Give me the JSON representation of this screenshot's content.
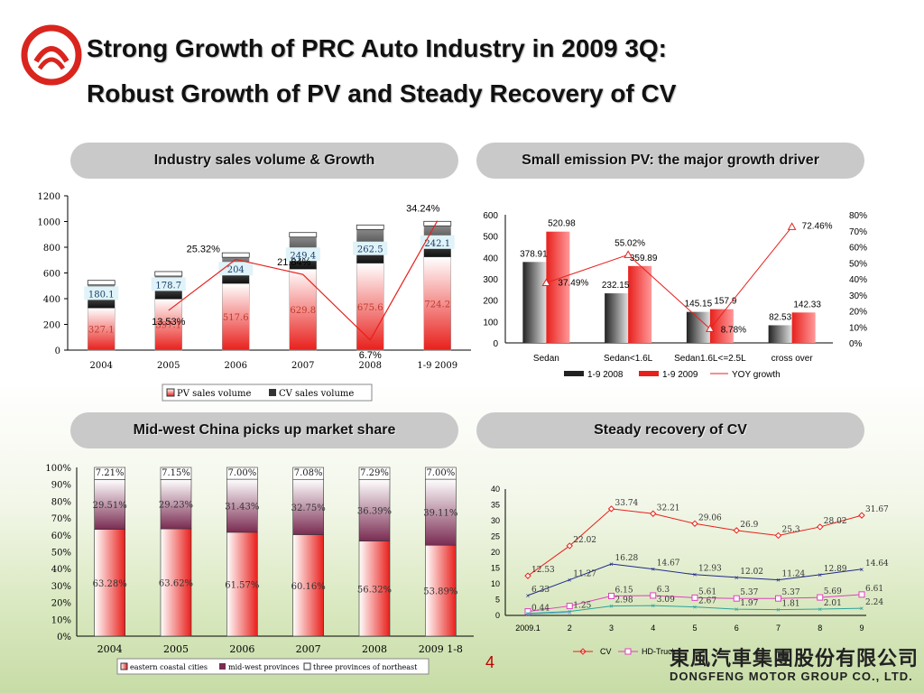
{
  "title_line1": "Strong Growth of PRC Auto Industry in 2009 3Q:",
  "title_line2": "Robust Growth of PV and Steady Recovery of CV",
  "page_number": "4",
  "company": {
    "cn": "東風汽車集團股份有限公司",
    "en": "DONGFENG  MOTOR  GROUP  CO., LTD."
  },
  "colors": {
    "logo": "#d9251d",
    "pill": "#c9c9c9",
    "red": "#e8201c",
    "black": "#222222"
  },
  "panels": {
    "p1": "Industry sales volume & Growth",
    "p2": "Small emission PV: the major growth driver",
    "p3": "Mid-west China picks up market share",
    "p4": "Steady recovery of CV"
  },
  "chart_data": [
    {
      "type": "bar",
      "stacked": true,
      "categories": [
        "2004",
        "2005",
        "2006",
        "2007",
        "2008",
        "1-9  2009"
      ],
      "series": [
        {
          "name": "PV sales volume",
          "values": [
            327.1,
            397.1,
            517.6,
            629.8,
            675.6,
            724.2
          ],
          "labels": [
            "327.1",
            "397.1",
            "517.6",
            "629.8",
            "675.6",
            "724.2"
          ]
        },
        {
          "name": "CV sales volume",
          "values": [
            180.1,
            178.7,
            204,
            249.4,
            262.5,
            242.1
          ],
          "labels": [
            "180.1",
            "178.7",
            "204",
            "249.4",
            "262.5",
            "242.1"
          ]
        }
      ],
      "growth_labels": [
        "",
        "13.53%",
        "25.32%",
        "21.84%",
        "6.7%",
        "34.24%"
      ],
      "growth_values": [
        null,
        13.53,
        25.32,
        21.84,
        6.7,
        34.24
      ],
      "ylim": [
        0,
        1200
      ],
      "yticks": [
        "0",
        "200",
        "400",
        "600",
        "800",
        "1000",
        "1200"
      ]
    },
    {
      "type": "bar",
      "categories": [
        "Sedan",
        "Sedan<1.6L",
        "Sedan1.6L<=2.5L",
        "cross over"
      ],
      "series": [
        {
          "name": "1-9 2008",
          "values": [
            378.91,
            232.15,
            145.15,
            82.53
          ],
          "labels": [
            "378.91",
            "232.15",
            "145.15",
            "82.53"
          ]
        },
        {
          "name": "1-9 2009",
          "values": [
            520.98,
            359.89,
            157.9,
            142.33
          ],
          "labels": [
            "520.98",
            "359.89",
            "157.9",
            "142.33"
          ]
        },
        {
          "name": "YOY growth",
          "axis": "right",
          "values": [
            37.49,
            55.02,
            8.78,
            72.46
          ],
          "labels": [
            "37.49%",
            "55.02%",
            "8.78%",
            "72.46%"
          ]
        }
      ],
      "ylim": [
        0,
        600
      ],
      "yticks": [
        "0",
        "100",
        "200",
        "300",
        "400",
        "500",
        "600"
      ],
      "y2lim": [
        0,
        80
      ],
      "y2ticks": [
        "0%",
        "10%",
        "20%",
        "30%",
        "40%",
        "50%",
        "60%",
        "70%",
        "80%"
      ]
    },
    {
      "type": "bar",
      "stacked": true,
      "percent": true,
      "categories": [
        "2004",
        "2005",
        "2006",
        "2007",
        "2008",
        "2009  1-8"
      ],
      "series": [
        {
          "name": "eastern coastal cities",
          "values": [
            63.28,
            63.62,
            61.57,
            60.16,
            56.32,
            53.89
          ],
          "labels": [
            "63.28%",
            "63.62%",
            "61.57%",
            "60.16%",
            "56.32%",
            "53.89%"
          ]
        },
        {
          "name": "mid-west provinces",
          "values": [
            29.51,
            29.23,
            31.43,
            32.75,
            36.39,
            39.11
          ],
          "labels": [
            "29.51%",
            "29.23%",
            "31.43%",
            "32.75%",
            "36.39%",
            "39.11%"
          ]
        },
        {
          "name": "three provinces of northeast",
          "values": [
            7.21,
            7.15,
            7.0,
            7.08,
            7.29,
            7.0
          ],
          "labels": [
            "7.21%",
            "7.15%",
            "7.00%",
            "7.08%",
            "7.29%",
            "7.00%"
          ]
        }
      ],
      "ylim": [
        0,
        100
      ],
      "yticks": [
        "0%",
        "10%",
        "20%",
        "30%",
        "40%",
        "50%",
        "60%",
        "70%",
        "80%",
        "90%",
        "100%"
      ]
    },
    {
      "type": "line",
      "x": [
        "2009.1",
        "2",
        "3",
        "4",
        "5",
        "6",
        "7",
        "8",
        "9"
      ],
      "series": [
        {
          "name": "CV",
          "color": "#e8201c",
          "values": [
            12.53,
            22.02,
            33.74,
            32.21,
            29.06,
            26.9,
            25.3,
            28.02,
            31.67
          ],
          "labels": [
            "12.53",
            "22.02",
            "33.74",
            "32.21",
            "29.06",
            "26.9",
            "25.3",
            "28.02",
            "31.67"
          ]
        },
        {
          "name": "HD-Truck",
          "color": "#e040c0",
          "values": [
            1.26,
            2.98,
            6.15,
            6.3,
            5.61,
            5.37,
            5.37,
            5.69,
            6.61
          ],
          "labels": [
            "",
            "",
            "6.15",
            "6.3",
            "5.61",
            "5.37",
            "5.37",
            "5.69",
            "6.61"
          ]
        },
        {
          "name": "",
          "color": "#1f2a8a",
          "values": [
            6.33,
            11.27,
            16.28,
            14.67,
            12.93,
            12.02,
            11.24,
            12.89,
            14.64
          ],
          "labels": [
            "6.33",
            "11.27",
            "16.28",
            "14.67",
            "12.93",
            "12.02",
            "11.24",
            "12.89",
            "14.64"
          ]
        },
        {
          "name": "",
          "color": "#2aa39a",
          "values": [
            0.65,
            1.25,
            2.98,
            3.09,
            2.67,
            1.97,
            1.81,
            2.01,
            2.24
          ],
          "labels": [
            "",
            "1.25",
            "2.98",
            "3.09",
            "2.67",
            "1.97",
            "1.81",
            "2.01",
            "2.24"
          ]
        },
        {
          "name": "",
          "color": "#6fa8dc",
          "values": [
            0.44,
            0.92,
            null,
            null,
            null,
            null,
            null,
            null,
            null
          ],
          "labels": [
            "0.44",
            "",
            "",
            "",
            "",
            "",
            "",
            "",
            ""
          ]
        }
      ],
      "ylim": [
        0,
        40
      ],
      "yticks": [
        "0",
        "5",
        "10",
        "15",
        "20",
        "25",
        "30",
        "35",
        "40"
      ]
    }
  ]
}
